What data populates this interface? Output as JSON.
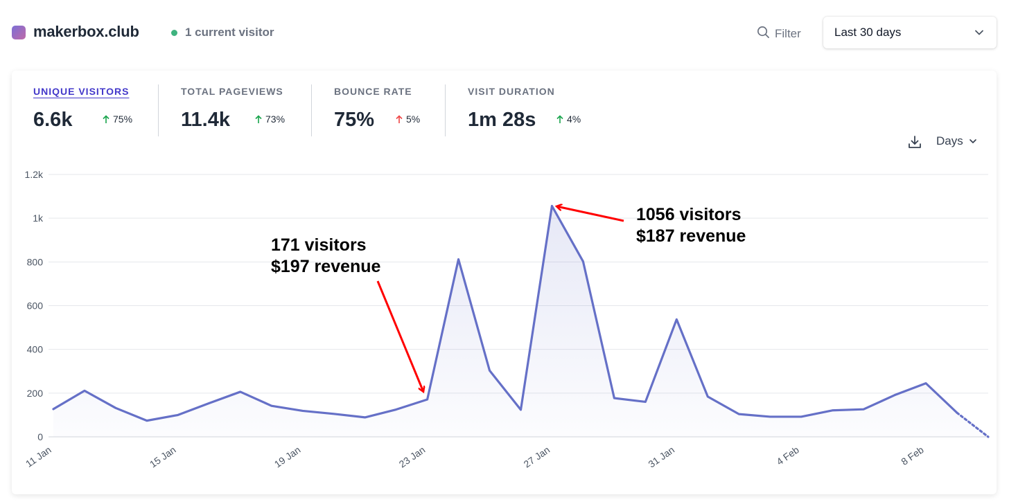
{
  "header": {
    "site_name": "makerbox.club",
    "current_visitors": "1 current visitor",
    "filter_label": "Filter",
    "period_label": "Last 30 days"
  },
  "stats": [
    {
      "label": "UNIQUE VISITORS",
      "value": "6.6k",
      "change": "75%",
      "direction": "up",
      "color": "#16a34a",
      "active": true
    },
    {
      "label": "TOTAL PAGEVIEWS",
      "value": "11.4k",
      "change": "73%",
      "direction": "up",
      "color": "#16a34a",
      "active": false
    },
    {
      "label": "BOUNCE RATE",
      "value": "75%",
      "change": "5%",
      "direction": "up",
      "color": "#ef4444",
      "active": false
    },
    {
      "label": "VISIT DURATION",
      "value": "1m 28s",
      "change": "4%",
      "direction": "up",
      "color": "#16a34a",
      "active": false
    }
  ],
  "controls": {
    "interval_label": "Days",
    "download_icon": "download-icon"
  },
  "annotations": [
    {
      "line1": "171 visitors",
      "line2": "$197 revenue"
    },
    {
      "line1": "1056 visitors",
      "line2": "$187 revenue"
    }
  ],
  "colors": {
    "accent": "#4338ca",
    "line": "#6570c7",
    "up_green": "#16a34a",
    "up_red": "#ef4444",
    "annotation_arrow": "#ff0000"
  },
  "chart_data": {
    "type": "area",
    "title": "",
    "xlabel": "",
    "ylabel": "",
    "ylim": [
      0,
      1200
    ],
    "y_ticks": [
      "0",
      "200",
      "400",
      "600",
      "800",
      "1k",
      "1.2k"
    ],
    "y_tick_values": [
      0,
      200,
      400,
      600,
      800,
      1000,
      1200
    ],
    "x_tick_labels": [
      "11 Jan",
      "15 Jan",
      "19 Jan",
      "23 Jan",
      "27 Jan",
      "31 Jan",
      "4 Feb",
      "8 Feb"
    ],
    "x_tick_indices": [
      0,
      4,
      8,
      12,
      16,
      20,
      24,
      28
    ],
    "x": [
      "11 Jan",
      "12 Jan",
      "13 Jan",
      "14 Jan",
      "15 Jan",
      "16 Jan",
      "17 Jan",
      "18 Jan",
      "19 Jan",
      "20 Jan",
      "21 Jan",
      "22 Jan",
      "23 Jan",
      "24 Jan",
      "25 Jan",
      "26 Jan",
      "27 Jan",
      "28 Jan",
      "29 Jan",
      "30 Jan",
      "31 Jan",
      "1 Feb",
      "2 Feb",
      "3 Feb",
      "4 Feb",
      "5 Feb",
      "6 Feb",
      "7 Feb",
      "8 Feb",
      "9 Feb",
      "10 Feb"
    ],
    "series": [
      {
        "values": [
          127,
          211,
          132,
          74,
          100,
          154,
          206,
          142,
          119,
          105,
          89,
          125,
          171,
          812,
          303,
          124,
          1056,
          802,
          177,
          160,
          537,
          184,
          104,
          92,
          92,
          121,
          126,
          191,
          245,
          110,
          0
        ],
        "partial_last": true
      }
    ],
    "grid": true,
    "legend": "none"
  }
}
